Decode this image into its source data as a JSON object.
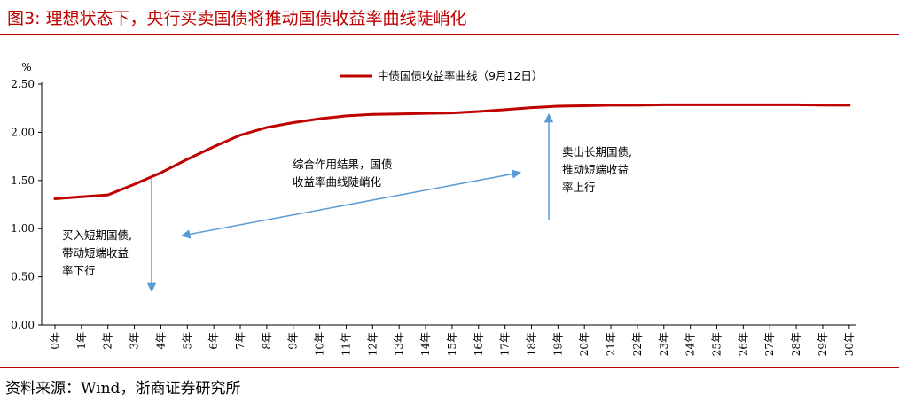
{
  "header": {
    "title": "图3:   理想状态下，央行买卖国债将推动国债收益率曲线陡峭化"
  },
  "footer": {
    "source": "资料来源：Wind，浙商证券研究所"
  },
  "chart_data": {
    "type": "line",
    "title": "",
    "ylabel": "%",
    "xlabel": "",
    "ylim": [
      0,
      2.5
    ],
    "yticks": [
      "0.00",
      "0.50",
      "1.00",
      "1.50",
      "2.00",
      "2.50"
    ],
    "categories": [
      "0年",
      "1年",
      "2年",
      "3年",
      "4年",
      "5年",
      "6年",
      "7年",
      "8年",
      "9年",
      "10年",
      "11年",
      "12年",
      "13年",
      "14年",
      "15年",
      "16年",
      "17年",
      "18年",
      "19年",
      "20年",
      "21年",
      "22年",
      "23年",
      "24年",
      "25年",
      "26年",
      "27年",
      "28年",
      "29年",
      "30年"
    ],
    "series": [
      {
        "name": "中债国债收益率曲线（9月12日）",
        "color": "#c00000",
        "values": [
          1.31,
          1.33,
          1.35,
          1.46,
          1.58,
          1.72,
          1.85,
          1.97,
          2.05,
          2.1,
          2.14,
          2.17,
          2.185,
          2.19,
          2.195,
          2.2,
          2.215,
          2.235,
          2.255,
          2.27,
          2.275,
          2.28,
          2.28,
          2.285,
          2.285,
          2.285,
          2.285,
          2.285,
          2.285,
          2.282,
          2.28
        ]
      }
    ],
    "legend": "top-center",
    "grid": false,
    "annotations": [
      {
        "lines": [
          "买入短期国债,",
          "带动短端收益",
          "率下行"
        ],
        "arrow": "down",
        "color": "#5b9bd5"
      },
      {
        "lines": [
          "综合作用结果，国债",
          "收益率曲线陡峭化"
        ],
        "arrow": "double",
        "color": "#5b9bd5"
      },
      {
        "lines": [
          "卖出长期国债,",
          "推动短端收益",
          "率上行"
        ],
        "arrow": "up",
        "color": "#5b9bd5"
      }
    ]
  }
}
